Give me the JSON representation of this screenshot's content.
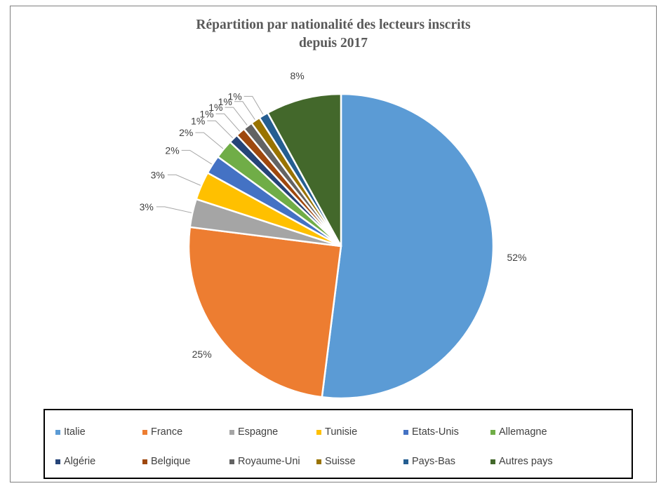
{
  "chart_data": {
    "type": "pie",
    "title_lines": [
      "Répartition par nationalité des lecteurs inscrits",
      "depuis 2017"
    ],
    "slices": [
      {
        "name": "Italie",
        "value": 52,
        "label": "52%",
        "color": "#5b9bd5"
      },
      {
        "name": "France",
        "value": 25,
        "label": "25%",
        "color": "#ed7d31"
      },
      {
        "name": "Espagne",
        "value": 3,
        "label": "3%",
        "color": "#a5a5a5"
      },
      {
        "name": "Tunisie",
        "value": 3,
        "label": "3%",
        "color": "#ffc000"
      },
      {
        "name": "Etats-Unis",
        "value": 2,
        "label": "2%",
        "color": "#4472c4"
      },
      {
        "name": "Allemagne",
        "value": 2,
        "label": "2%",
        "color": "#70ad47"
      },
      {
        "name": "Algérie",
        "value": 1,
        "label": "1%",
        "color": "#264478"
      },
      {
        "name": "Belgique",
        "value": 1,
        "label": "1%",
        "color": "#9e480e"
      },
      {
        "name": "Royaume-Uni",
        "value": 1,
        "label": "1%",
        "color": "#636363"
      },
      {
        "name": "Suisse",
        "value": 1,
        "label": "1%",
        "color": "#997300"
      },
      {
        "name": "Pays-Bas",
        "value": 1,
        "label": "1%",
        "color": "#255e91"
      },
      {
        "name": "Autres pays",
        "value": 8,
        "label": "8%",
        "color": "#43682b"
      }
    ],
    "legend_position": "bottom"
  }
}
